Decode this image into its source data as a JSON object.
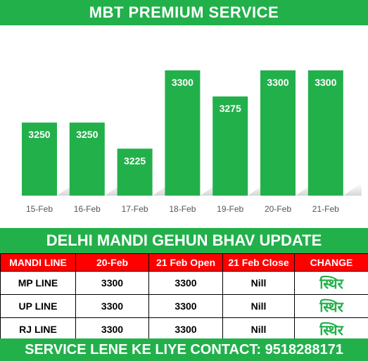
{
  "header": {
    "title": "MBT PREMIUM SERVICE"
  },
  "chart_data": {
    "type": "bar",
    "categories": [
      "15-Feb",
      "16-Feb",
      "17-Feb",
      "18-Feb",
      "19-Feb",
      "20-Feb",
      "21-Feb"
    ],
    "values": [
      3250,
      3250,
      3225,
      3300,
      3275,
      3300,
      3300
    ],
    "data_labels": [
      "3250",
      "3250",
      "3225",
      "3300",
      "3275",
      "3300",
      "3300"
    ],
    "bar_color": "#22b04b",
    "grid": false,
    "legend": "none"
  },
  "subheader": {
    "title": "DELHI MANDI GEHUN BHAV UPDATE"
  },
  "table": {
    "headers": [
      "MANDI LINE",
      "20-Feb",
      "21 Feb Open",
      "21 Feb Close",
      "CHANGE"
    ],
    "rows": [
      [
        "MP LINE",
        "3300",
        "3300",
        "Nill",
        "स्थिर"
      ],
      [
        "UP LINE",
        "3300",
        "3300",
        "Nill",
        "स्थिर"
      ],
      [
        "RJ LINE",
        "3300",
        "3300",
        "Nill",
        "स्थिर"
      ]
    ]
  },
  "footer": {
    "contact": "SERVICE LENE KE LIYE CONTACT: 9518288171"
  },
  "colors": {
    "green": "#22b04b",
    "red": "#ff0000"
  }
}
